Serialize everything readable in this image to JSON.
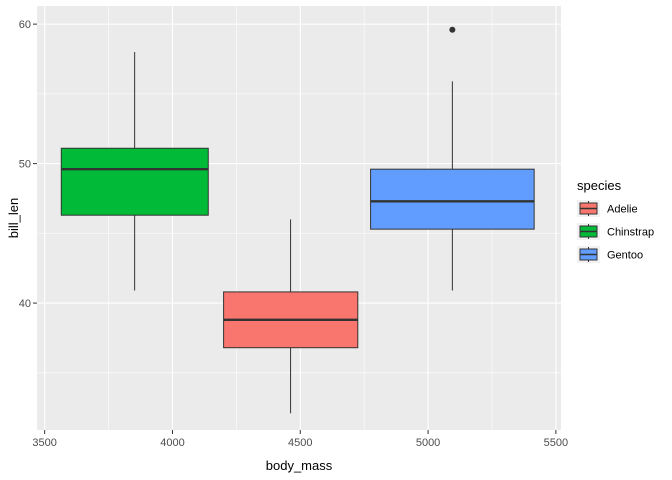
{
  "chart_data": {
    "type": "boxplot",
    "xlabel": "body_mass",
    "ylabel": "bill_len",
    "xlim": [
      3470,
      5520
    ],
    "ylim": [
      30.9,
      61.3
    ],
    "x_ticks": [
      3500,
      4000,
      4500,
      5000,
      5500
    ],
    "y_ticks": [
      40,
      50,
      60
    ],
    "grid": true,
    "legend": {
      "title": "species",
      "position": "right",
      "entries": [
        "Adelie",
        "Chinstrap",
        "Gentoo"
      ]
    },
    "boxes": [
      {
        "species": "Adelie",
        "x_min": 4200,
        "x_max": 4725,
        "x_center": 4462,
        "whisker_low": 32.1,
        "q1": 36.8,
        "median": 38.8,
        "q3": 40.8,
        "whisker_high": 46.0,
        "outliers": [],
        "color": "#F8766D"
      },
      {
        "species": "Chinstrap",
        "x_min": 3565,
        "x_max": 4140,
        "x_center": 3852,
        "whisker_low": 40.9,
        "q1": 46.3,
        "median": 49.6,
        "q3": 51.1,
        "whisker_high": 58.0,
        "outliers": [],
        "color": "#00BA38"
      },
      {
        "species": "Gentoo",
        "x_min": 4775,
        "x_max": 5415,
        "x_center": 5095,
        "whisker_low": 40.9,
        "q1": 45.3,
        "median": 47.3,
        "q3": 49.6,
        "whisker_high": 55.9,
        "outliers": [
          59.6
        ],
        "color": "#619CFF"
      }
    ]
  }
}
